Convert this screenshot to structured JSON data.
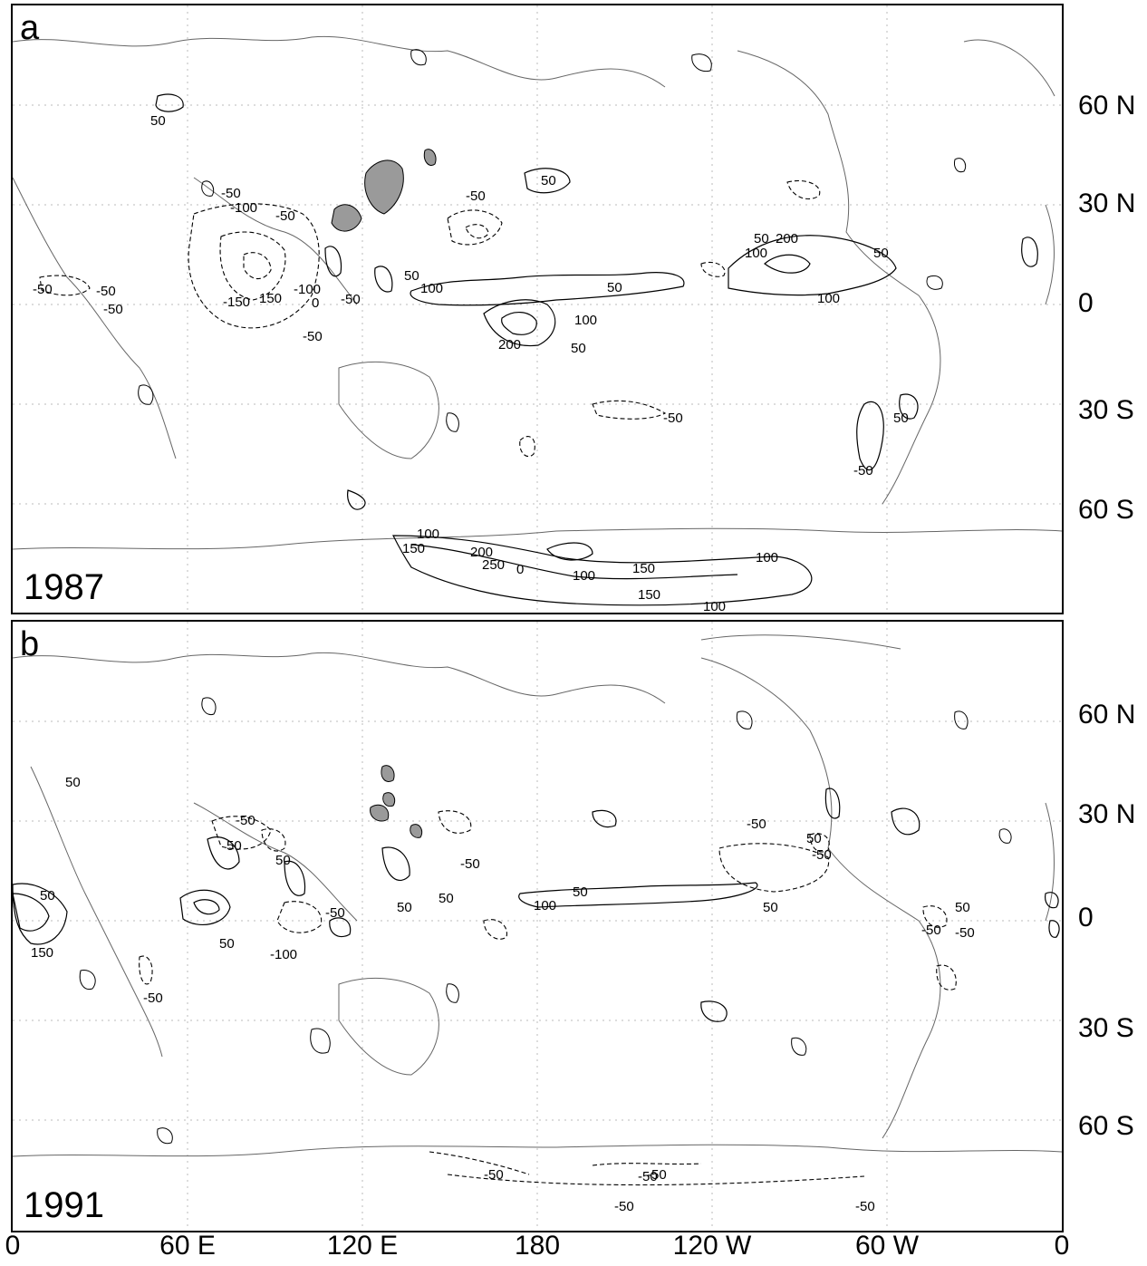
{
  "panels": [
    {
      "letter": "a",
      "year": "1987",
      "contour_labels": [
        "50",
        "-50",
        "-100",
        "-50",
        "50",
        "-50",
        "50",
        "200",
        "100",
        "50",
        "-50",
        "-50",
        "-150",
        "150",
        "-100",
        "0",
        "-50",
        "50",
        "100",
        "50",
        "100",
        "200",
        "50",
        "100",
        "-50",
        "-50",
        "-50",
        "50",
        "-50",
        "100",
        "150",
        "200",
        "250",
        "0",
        "100",
        "150",
        "100",
        "150",
        "100"
      ]
    },
    {
      "letter": "b",
      "year": "1991",
      "contour_labels": [
        "50",
        "-50",
        "50",
        "50",
        "-50",
        "50",
        "-50",
        "50",
        "-50",
        "50",
        "50",
        "150",
        "-100",
        "-50",
        "-50",
        "50",
        "100",
        "50",
        "50",
        "-50",
        "50",
        "-50",
        "-50",
        "-50",
        "-50",
        "-50",
        "-50"
      ]
    }
  ],
  "lat_labels": [
    "60 N",
    "30 N",
    "0",
    "30 S",
    "60 S"
  ],
  "lon_labels": [
    "0",
    "60 E",
    "120 E",
    "180",
    "120 W",
    "60 W",
    "0"
  ]
}
